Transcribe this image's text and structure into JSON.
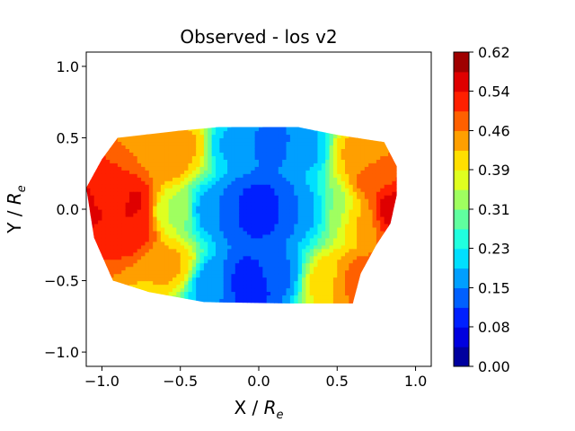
{
  "chart_data": {
    "type": "heatmap",
    "plot_style": "filled-contour",
    "title": "Observed - los v2",
    "xlabel": "X / R_e",
    "ylabel": "Y / R_e",
    "xlim": [
      -1.1,
      1.1
    ],
    "ylim": [
      -1.1,
      1.1
    ],
    "x_ticks": [
      -1.0,
      -0.5,
      0.0,
      0.5,
      1.0
    ],
    "x_tick_labels": [
      "−1.0",
      "−0.5",
      "0.0",
      "0.5",
      "1.0"
    ],
    "y_ticks": [
      -1.0,
      -0.5,
      0.0,
      0.5,
      1.0
    ],
    "y_tick_labels": [
      "−1.0",
      "−0.5",
      "0.0",
      "0.5",
      "1.0"
    ],
    "colormap": "jet",
    "colorbar": {
      "min": 0.0,
      "max": 0.62,
      "levels": 16,
      "tick_values": [
        0.0,
        0.078,
        0.155,
        0.233,
        0.31,
        0.388,
        0.465,
        0.543,
        0.62
      ],
      "tick_labels": [
        "0.00",
        "0.08",
        "0.15",
        "0.23",
        "0.31",
        "0.39",
        "0.46",
        "0.54",
        "0.62"
      ]
    },
    "data_region_outline": [
      [
        -0.9,
        0.5
      ],
      [
        -0.5,
        0.55
      ],
      [
        -0.25,
        0.575
      ],
      [
        0.25,
        0.575
      ],
      [
        0.5,
        0.52
      ],
      [
        0.8,
        0.47
      ],
      [
        0.88,
        0.3
      ],
      [
        0.88,
        0.1
      ],
      [
        0.84,
        -0.1
      ],
      [
        0.75,
        -0.25
      ],
      [
        0.65,
        -0.45
      ],
      [
        0.6,
        -0.66
      ],
      [
        0.2,
        -0.66
      ],
      [
        -0.35,
        -0.65
      ],
      [
        -0.7,
        -0.58
      ],
      [
        -0.93,
        -0.5
      ],
      [
        -1.05,
        -0.2
      ],
      [
        -1.1,
        0.15
      ],
      [
        -1.0,
        0.35
      ]
    ],
    "surface_samples": [
      {
        "x": -1.05,
        "y": 0.05,
        "value": 0.56
      },
      {
        "x": -0.95,
        "y": 0.1,
        "value": 0.5
      },
      {
        "x": -0.8,
        "y": 0.05,
        "value": 0.56
      },
      {
        "x": -0.82,
        "y": -0.12,
        "value": 0.54
      },
      {
        "x": -0.6,
        "y": 0.35,
        "value": 0.46
      },
      {
        "x": -0.45,
        "y": 0.45,
        "value": 0.44
      },
      {
        "x": -0.55,
        "y": -0.4,
        "value": 0.44
      },
      {
        "x": -0.2,
        "y": 0.45,
        "value": 0.18
      },
      {
        "x": 0.1,
        "y": 0.45,
        "value": 0.14
      },
      {
        "x": 0.3,
        "y": 0.42,
        "value": 0.18
      },
      {
        "x": -0.12,
        "y": 0.0,
        "value": 0.12
      },
      {
        "x": 0.0,
        "y": 0.0,
        "value": 0.07
      },
      {
        "x": 0.12,
        "y": 0.0,
        "value": 0.12
      },
      {
        "x": -0.3,
        "y": 0.0,
        "value": 0.16
      },
      {
        "x": 0.3,
        "y": 0.0,
        "value": 0.16
      },
      {
        "x": -0.05,
        "y": -0.5,
        "value": 0.08
      },
      {
        "x": 0.1,
        "y": -0.45,
        "value": 0.14
      },
      {
        "x": -0.3,
        "y": -0.5,
        "value": 0.16
      },
      {
        "x": 0.62,
        "y": 0.4,
        "value": 0.44
      },
      {
        "x": 0.75,
        "y": 0.2,
        "value": 0.5
      },
      {
        "x": 0.85,
        "y": 0.0,
        "value": 0.58
      },
      {
        "x": 0.65,
        "y": -0.05,
        "value": 0.44
      },
      {
        "x": 0.65,
        "y": -0.5,
        "value": 0.5
      },
      {
        "x": 0.45,
        "y": -0.5,
        "value": 0.42
      },
      {
        "x": -0.55,
        "y": 0.0,
        "value": 0.34
      },
      {
        "x": 0.5,
        "y": 0.0,
        "value": 0.32
      }
    ],
    "surface_baseline": 0.33
  }
}
